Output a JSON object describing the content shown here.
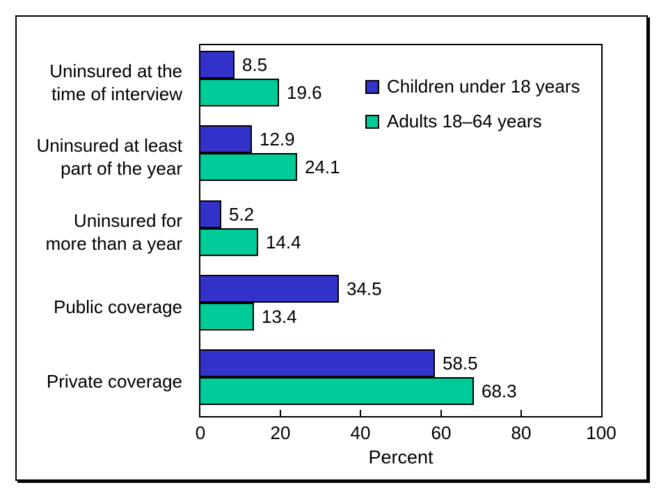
{
  "chart_data": {
    "type": "bar",
    "orientation": "horizontal",
    "categories": [
      "Uninsured at the\ntime of interview",
      "Uninsured at least\npart of the year",
      "Uninsured for\nmore than a year",
      "Public coverage",
      "Private coverage"
    ],
    "series": [
      {
        "name": "Children under 18 years",
        "color": "#3333CC",
        "values": [
          8.5,
          12.9,
          5.2,
          34.5,
          58.5
        ]
      },
      {
        "name": "Adults 18–64 years",
        "color": "#00CC99",
        "values": [
          19.6,
          24.1,
          14.4,
          13.4,
          68.3
        ]
      }
    ],
    "xlabel": "Percent",
    "xlim": [
      0,
      100
    ],
    "xticks": [
      0,
      20,
      40,
      60,
      80,
      100
    ],
    "value_labels": true,
    "legend_position": "top-right-inside",
    "grid": false,
    "bar_border_color": "#000000",
    "frame_border_color": "#000000"
  }
}
